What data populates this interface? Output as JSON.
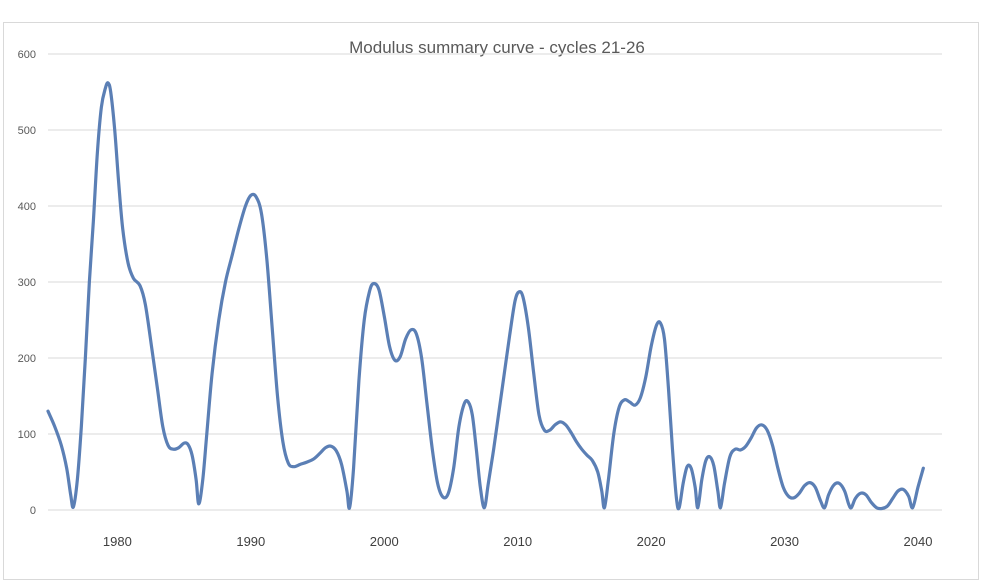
{
  "chart_data": {
    "type": "line",
    "title": "Modulus summary curve - cycles 21-26",
    "xlabel": "",
    "ylabel": "",
    "xlim": [
      1974.8,
      2041.8
    ],
    "ylim": [
      0,
      600
    ],
    "y_ticks": [
      "0",
      "100",
      "200",
      "300",
      "400",
      "500",
      "600"
    ],
    "x_ticks": [
      "1980",
      "1990",
      "2000",
      "2010",
      "2020",
      "2030",
      "2040"
    ],
    "grid": "horizontal",
    "legend": "none",
    "series": [
      {
        "color": "#5b7fb5",
        "points": [
          [
            1974.8,
            130
          ],
          [
            1975.3,
            110
          ],
          [
            1975.8,
            85
          ],
          [
            1976.2,
            55
          ],
          [
            1976.5,
            20
          ],
          [
            1976.7,
            4
          ],
          [
            1977.0,
            40
          ],
          [
            1977.3,
            110
          ],
          [
            1977.6,
            200
          ],
          [
            1977.9,
            300
          ],
          [
            1978.2,
            380
          ],
          [
            1978.5,
            470
          ],
          [
            1978.8,
            530
          ],
          [
            1979.1,
            555
          ],
          [
            1979.3,
            562
          ],
          [
            1979.5,
            550
          ],
          [
            1979.8,
            500
          ],
          [
            1980.1,
            430
          ],
          [
            1980.4,
            370
          ],
          [
            1980.8,
            325
          ],
          [
            1981.2,
            305
          ],
          [
            1981.7,
            295
          ],
          [
            1982.1,
            270
          ],
          [
            1982.6,
            210
          ],
          [
            1983.0,
            160
          ],
          [
            1983.4,
            110
          ],
          [
            1983.8,
            85
          ],
          [
            1984.2,
            80
          ],
          [
            1984.6,
            82
          ],
          [
            1985.0,
            88
          ],
          [
            1985.3,
            86
          ],
          [
            1985.6,
            72
          ],
          [
            1985.9,
            40
          ],
          [
            1986.1,
            8
          ],
          [
            1986.4,
            40
          ],
          [
            1986.7,
            100
          ],
          [
            1987.1,
            180
          ],
          [
            1987.6,
            250
          ],
          [
            1988.1,
            300
          ],
          [
            1988.6,
            335
          ],
          [
            1989.1,
            370
          ],
          [
            1989.6,
            400
          ],
          [
            1990.0,
            414
          ],
          [
            1990.4,
            412
          ],
          [
            1990.8,
            390
          ],
          [
            1991.2,
            330
          ],
          [
            1991.6,
            240
          ],
          [
            1992.0,
            150
          ],
          [
            1992.4,
            90
          ],
          [
            1992.8,
            62
          ],
          [
            1993.2,
            57
          ],
          [
            1993.7,
            60
          ],
          [
            1994.2,
            63
          ],
          [
            1994.7,
            67
          ],
          [
            1995.2,
            75
          ],
          [
            1995.6,
            82
          ],
          [
            1996.0,
            84
          ],
          [
            1996.4,
            78
          ],
          [
            1996.8,
            60
          ],
          [
            1997.2,
            25
          ],
          [
            1997.4,
            3
          ],
          [
            1997.7,
            55
          ],
          [
            1998.1,
            170
          ],
          [
            1998.5,
            250
          ],
          [
            1998.9,
            288
          ],
          [
            1999.2,
            298
          ],
          [
            1999.6,
            290
          ],
          [
            2000.0,
            255
          ],
          [
            2000.4,
            215
          ],
          [
            2000.8,
            197
          ],
          [
            2001.2,
            202
          ],
          [
            2001.6,
            225
          ],
          [
            2002.0,
            237
          ],
          [
            2002.4,
            232
          ],
          [
            2002.8,
            200
          ],
          [
            2003.2,
            140
          ],
          [
            2003.6,
            80
          ],
          [
            2004.0,
            35
          ],
          [
            2004.4,
            17
          ],
          [
            2004.8,
            22
          ],
          [
            2005.2,
            55
          ],
          [
            2005.6,
            110
          ],
          [
            2006.0,
            140
          ],
          [
            2006.3,
            142
          ],
          [
            2006.6,
            125
          ],
          [
            2006.9,
            80
          ],
          [
            2007.2,
            30
          ],
          [
            2007.5,
            3
          ],
          [
            2007.8,
            35
          ],
          [
            2008.2,
            80
          ],
          [
            2008.6,
            130
          ],
          [
            2009.0,
            180
          ],
          [
            2009.4,
            230
          ],
          [
            2009.8,
            275
          ],
          [
            2010.1,
            287
          ],
          [
            2010.4,
            280
          ],
          [
            2010.8,
            240
          ],
          [
            2011.2,
            180
          ],
          [
            2011.6,
            125
          ],
          [
            2012.0,
            105
          ],
          [
            2012.4,
            105
          ],
          [
            2012.8,
            112
          ],
          [
            2013.2,
            116
          ],
          [
            2013.6,
            112
          ],
          [
            2014.0,
            102
          ],
          [
            2014.4,
            90
          ],
          [
            2014.8,
            80
          ],
          [
            2015.2,
            72
          ],
          [
            2015.6,
            65
          ],
          [
            2016.0,
            50
          ],
          [
            2016.3,
            25
          ],
          [
            2016.5,
            3
          ],
          [
            2016.8,
            40
          ],
          [
            2017.2,
            100
          ],
          [
            2017.6,
            135
          ],
          [
            2018.0,
            145
          ],
          [
            2018.4,
            142
          ],
          [
            2018.8,
            138
          ],
          [
            2019.2,
            148
          ],
          [
            2019.6,
            175
          ],
          [
            2020.0,
            215
          ],
          [
            2020.4,
            243
          ],
          [
            2020.7,
            246
          ],
          [
            2021.0,
            225
          ],
          [
            2021.3,
            160
          ],
          [
            2021.6,
            80
          ],
          [
            2021.9,
            15
          ],
          [
            2022.1,
            3
          ],
          [
            2022.4,
            35
          ],
          [
            2022.7,
            57
          ],
          [
            2023.0,
            55
          ],
          [
            2023.3,
            30
          ],
          [
            2023.5,
            3
          ],
          [
            2023.8,
            40
          ],
          [
            2024.1,
            65
          ],
          [
            2024.4,
            70
          ],
          [
            2024.7,
            58
          ],
          [
            2025.0,
            25
          ],
          [
            2025.2,
            3
          ],
          [
            2025.5,
            35
          ],
          [
            2025.9,
            70
          ],
          [
            2026.3,
            80
          ],
          [
            2026.7,
            79
          ],
          [
            2027.1,
            84
          ],
          [
            2027.5,
            95
          ],
          [
            2027.9,
            108
          ],
          [
            2028.3,
            112
          ],
          [
            2028.7,
            105
          ],
          [
            2029.1,
            85
          ],
          [
            2029.5,
            55
          ],
          [
            2029.9,
            30
          ],
          [
            2030.3,
            18
          ],
          [
            2030.7,
            16
          ],
          [
            2031.1,
            22
          ],
          [
            2031.5,
            32
          ],
          [
            2031.9,
            36
          ],
          [
            2032.3,
            30
          ],
          [
            2032.7,
            12
          ],
          [
            2033.0,
            3
          ],
          [
            2033.3,
            20
          ],
          [
            2033.7,
            33
          ],
          [
            2034.1,
            35
          ],
          [
            2034.5,
            25
          ],
          [
            2034.8,
            8
          ],
          [
            2035.0,
            3
          ],
          [
            2035.3,
            15
          ],
          [
            2035.7,
            22
          ],
          [
            2036.1,
            20
          ],
          [
            2036.5,
            10
          ],
          [
            2036.9,
            3
          ],
          [
            2037.3,
            2
          ],
          [
            2037.7,
            5
          ],
          [
            2038.1,
            15
          ],
          [
            2038.5,
            25
          ],
          [
            2038.9,
            27
          ],
          [
            2039.3,
            18
          ],
          [
            2039.6,
            3
          ],
          [
            2040.0,
            30
          ],
          [
            2040.4,
            55
          ]
        ]
      }
    ]
  }
}
